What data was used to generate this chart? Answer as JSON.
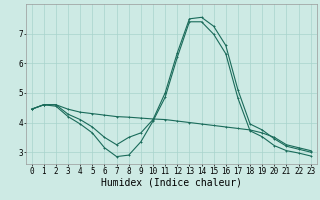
{
  "background_color": "#cdeae4",
  "grid_color": "#a8d4cc",
  "line_color": "#1a6b5a",
  "xlabel": "Humidex (Indice chaleur)",
  "xlabel_fontsize": 7,
  "tick_fontsize": 5.5,
  "yticks": [
    3,
    4,
    5,
    6,
    7
  ],
  "xlim": [
    -0.5,
    23.5
  ],
  "ylim": [
    2.6,
    8.0
  ],
  "lines": [
    [
      4.45,
      4.6,
      4.6,
      4.45,
      4.35,
      4.3,
      4.25,
      4.2,
      4.18,
      4.15,
      4.12,
      4.1,
      4.05,
      4.0,
      3.95,
      3.9,
      3.85,
      3.8,
      3.75,
      3.65,
      3.5,
      3.25,
      3.15,
      3.05
    ],
    [
      4.45,
      4.6,
      4.6,
      4.28,
      4.1,
      3.85,
      3.5,
      3.25,
      3.5,
      3.65,
      4.1,
      5.0,
      6.35,
      7.5,
      7.55,
      7.25,
      6.6,
      5.1,
      3.95,
      3.75,
      3.45,
      3.2,
      3.1,
      3.0
    ],
    [
      4.45,
      4.6,
      4.55,
      4.2,
      3.95,
      3.65,
      3.15,
      2.85,
      2.9,
      3.35,
      4.05,
      4.85,
      6.2,
      7.4,
      7.4,
      6.98,
      6.32,
      4.82,
      3.72,
      3.52,
      3.22,
      3.05,
      2.97,
      2.87
    ]
  ]
}
